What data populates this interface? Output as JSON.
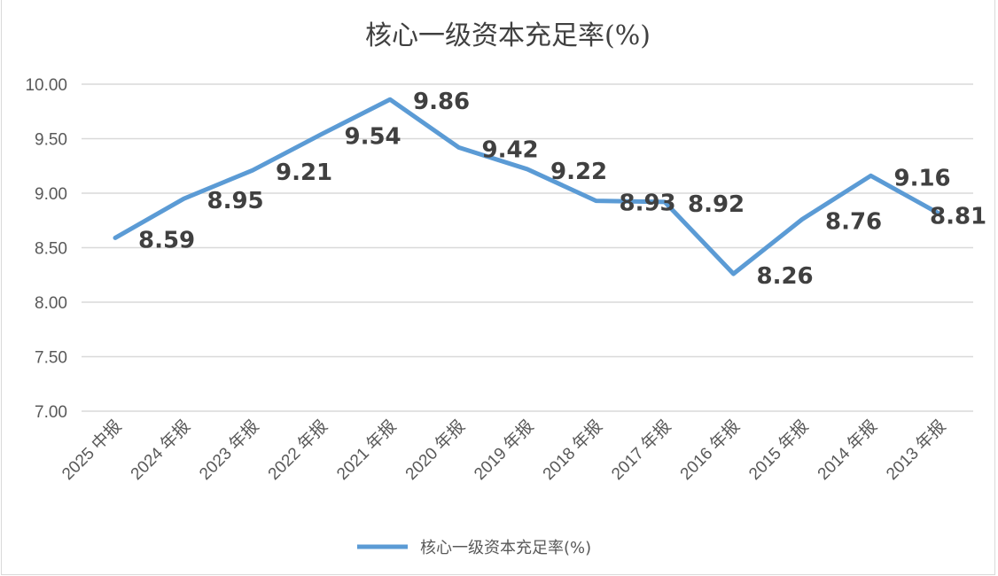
{
  "chart_data": {
    "type": "line",
    "title": "核心一级资本充足率(%)",
    "categories": [
      "2025 中报",
      "2024 年报",
      "2023 年报",
      "2022 年报",
      "2021 年报",
      "2020 年报",
      "2019 年报",
      "2018 年报",
      "2017 年报",
      "2016 年报",
      "2015 年报",
      "2014 年报",
      "2013 年报"
    ],
    "series": [
      {
        "name": "核心一级资本充足率(%)",
        "values": [
          8.59,
          8.95,
          9.21,
          9.54,
          9.86,
          9.42,
          9.22,
          8.93,
          8.92,
          8.26,
          8.76,
          9.16,
          8.81
        ],
        "color": "#5b9bd5"
      }
    ],
    "ylim": [
      7.0,
      10.0
    ],
    "yticks": [
      "7.00",
      "7.50",
      "8.00",
      "8.50",
      "9.00",
      "9.50",
      "10.00"
    ],
    "grid": true,
    "data_labels": true,
    "legend": "bottom"
  }
}
